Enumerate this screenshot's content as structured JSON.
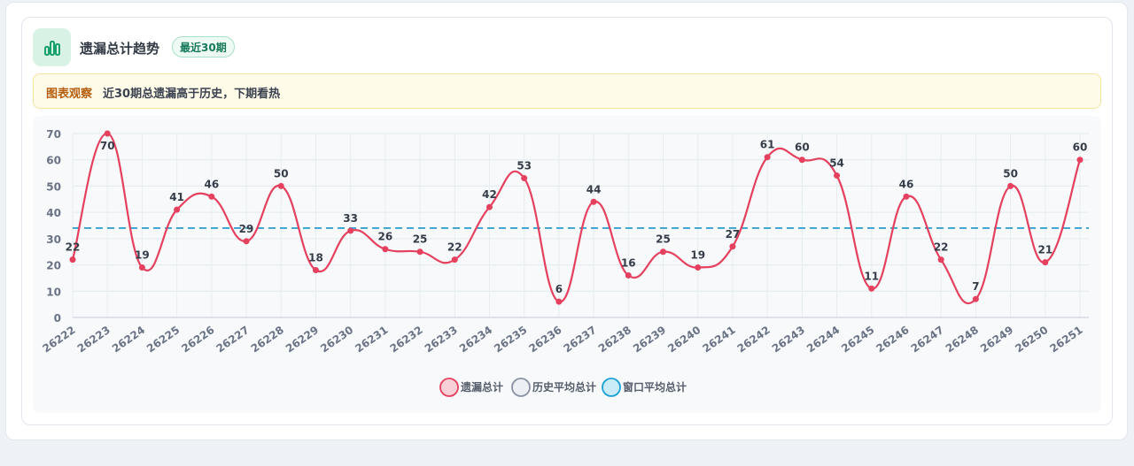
{
  "header": {
    "title": "遗漏总计趋势",
    "badge": "最近30期",
    "icon": "bar-chart-icon",
    "icon_color": "#16a06a"
  },
  "observation": {
    "label": "图表观察",
    "text": "近30期总遗漏高于历史，下期看热"
  },
  "chart_data": {
    "type": "line",
    "categories": [
      "26222",
      "26223",
      "26224",
      "26225",
      "26226",
      "26227",
      "26228",
      "26229",
      "26230",
      "26231",
      "26232",
      "26233",
      "26234",
      "26235",
      "26236",
      "26237",
      "26238",
      "26239",
      "26240",
      "26241",
      "26242",
      "26243",
      "26244",
      "26245",
      "26246",
      "26247",
      "26248",
      "26249",
      "26250",
      "26251"
    ],
    "series": [
      {
        "name": "遗漏总计",
        "color": "#e5405e",
        "values": [
          22,
          70,
          19,
          41,
          46,
          29,
          50,
          18,
          33,
          26,
          25,
          22,
          42,
          53,
          6,
          44,
          16,
          25,
          19,
          27,
          61,
          60,
          54,
          11,
          46,
          22,
          7,
          50,
          21,
          60
        ]
      },
      {
        "name": "历史平均总计",
        "color": "#8a93a3",
        "constant": 34
      },
      {
        "name": "窗口平均总计",
        "color": "#1aa0d6",
        "constant": 34
      }
    ],
    "ylim": [
      0,
      70
    ],
    "yticks": [
      "0",
      "10",
      "20",
      "30",
      "40",
      "50",
      "60",
      "70"
    ],
    "grid": true,
    "legend": "bottom-center"
  }
}
